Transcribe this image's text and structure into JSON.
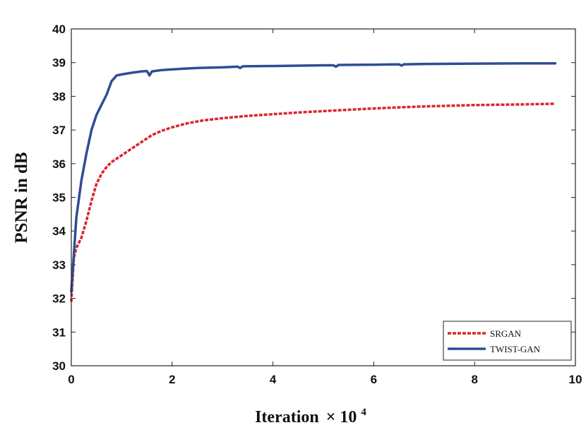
{
  "chart_data": {
    "type": "line",
    "xlabel": "Iteration",
    "xlabel_suffix": "× 10",
    "xlabel_exponent": "4",
    "ylabel": "PSNR in dB",
    "xlim": [
      0,
      10
    ],
    "ylim": [
      30,
      40
    ],
    "xticks": [
      0,
      2,
      4,
      6,
      8,
      10
    ],
    "yticks": [
      30,
      31,
      32,
      33,
      34,
      35,
      36,
      37,
      38,
      39,
      40
    ],
    "grid": false,
    "legend": "bottom-right",
    "series": [
      {
        "name": "SRGAN",
        "color": "#d9262e",
        "style": "dashed",
        "x": [
          0.0,
          0.05,
          0.1,
          0.2,
          0.3,
          0.4,
          0.5,
          0.6,
          0.7,
          0.8,
          1.0,
          1.2,
          1.4,
          1.6,
          1.8,
          2.0,
          2.3,
          2.6,
          3.0,
          3.5,
          4.0,
          4.5,
          5.0,
          5.5,
          6.0,
          6.5,
          7.0,
          7.5,
          8.0,
          8.5,
          9.0,
          9.6
        ],
        "y": [
          31.9,
          33.2,
          33.5,
          33.8,
          34.3,
          34.9,
          35.4,
          35.7,
          35.9,
          36.05,
          36.25,
          36.45,
          36.65,
          36.85,
          36.98,
          37.08,
          37.2,
          37.28,
          37.35,
          37.42,
          37.47,
          37.52,
          37.56,
          37.6,
          37.64,
          37.67,
          37.7,
          37.72,
          37.74,
          37.75,
          37.76,
          37.78
        ]
      },
      {
        "name": "TWIST-GAN",
        "color": "#2f4d96",
        "style": "solid",
        "x": [
          0.0,
          0.05,
          0.1,
          0.2,
          0.3,
          0.4,
          0.5,
          0.6,
          0.7,
          0.8,
          0.9,
          1.0,
          1.2,
          1.4,
          1.5,
          1.55,
          1.6,
          1.8,
          2.0,
          2.5,
          3.0,
          3.3,
          3.35,
          3.4,
          4.0,
          5.0,
          5.2,
          5.25,
          5.3,
          6.0,
          6.5,
          6.55,
          6.6,
          7.0,
          8.0,
          9.0,
          9.6
        ],
        "y": [
          32.2,
          33.3,
          34.4,
          35.5,
          36.3,
          37.0,
          37.45,
          37.75,
          38.05,
          38.45,
          38.62,
          38.65,
          38.7,
          38.74,
          38.75,
          38.62,
          38.74,
          38.78,
          38.8,
          38.84,
          38.86,
          38.88,
          38.84,
          38.89,
          38.9,
          38.92,
          38.92,
          38.88,
          38.93,
          38.94,
          38.95,
          38.91,
          38.95,
          38.96,
          38.97,
          38.98,
          38.98
        ]
      }
    ]
  }
}
